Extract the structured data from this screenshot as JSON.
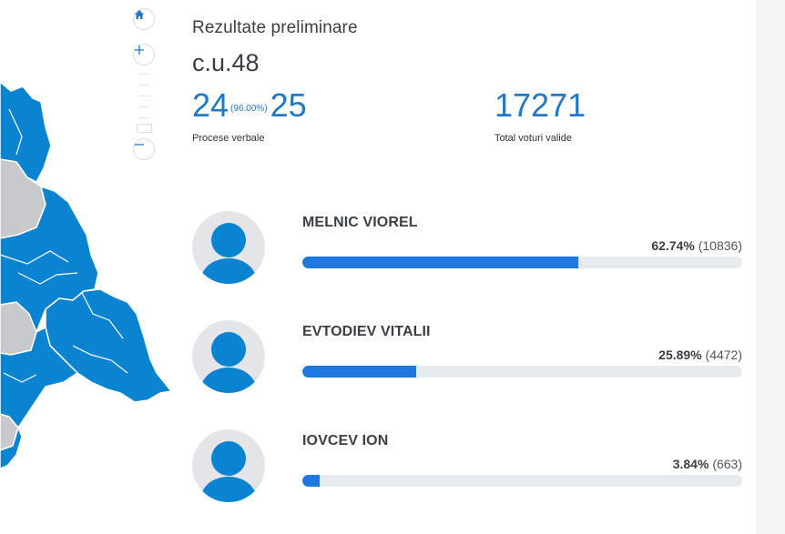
{
  "header": {
    "title": "Rezultate preliminare",
    "district": "c.u.48"
  },
  "stats": {
    "protocols_counted": "24",
    "protocols_pct": "(96.00%)",
    "protocols_total": "25",
    "protocols_label": "Procese verbale",
    "valid_votes": "17271",
    "valid_votes_label": "Total voturi valide"
  },
  "map_controls": {
    "home": "home-icon",
    "zoom_in": "plus-icon",
    "zoom_out": "minus-icon"
  },
  "colors": {
    "accent": "#1f78c8",
    "bar": "#1f78e0",
    "map_region": "#0a84d0",
    "map_inactive": "#c7c9cc",
    "track": "#e8ebee"
  },
  "candidates": [
    {
      "name": "MELNIC VIOREL",
      "percent": "62.74%",
      "votes": "(10836)",
      "share": 0.6274
    },
    {
      "name": "EVTODIEV VITALII",
      "percent": "25.89%",
      "votes": "(4472)",
      "share": 0.2589
    },
    {
      "name": "IOVCEV ION",
      "percent": "3.84%",
      "votes": "(663)",
      "share": 0.0384
    }
  ]
}
